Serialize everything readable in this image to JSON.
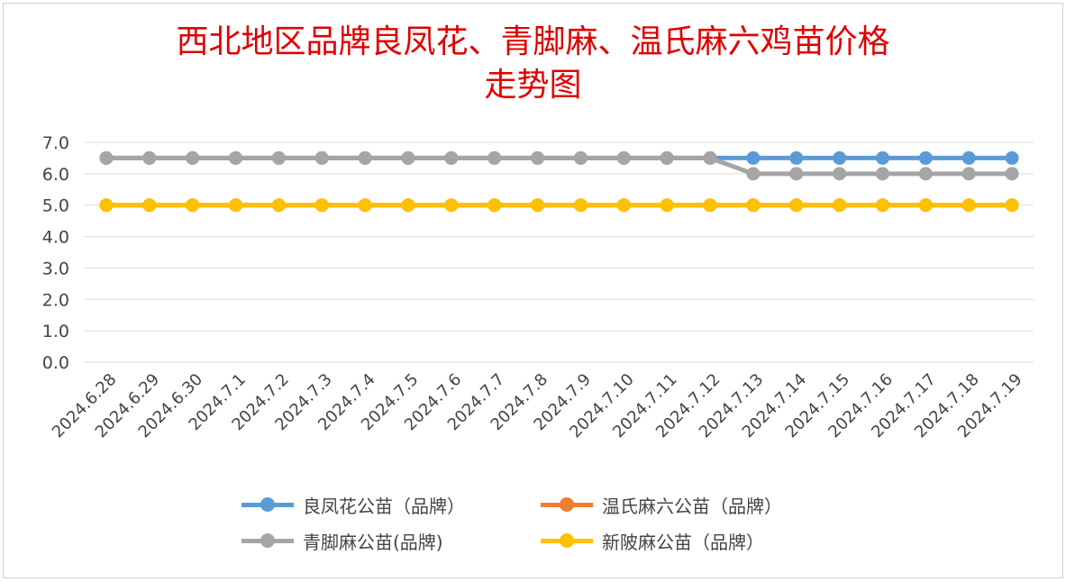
{
  "chart_data": {
    "type": "line",
    "title": "西北地区品牌良凤花、青脚麻、温氏麻六鸡苗价格",
    "title_line2": "走势图",
    "categories": [
      "2024.6.28",
      "2024.6.29",
      "2024.6.30",
      "2024.7.1",
      "2024.7.2",
      "2024.7.3",
      "2024.7.4",
      "2024.7.5",
      "2024.7.6",
      "2024.7.7",
      "2024.7.8",
      "2024.7.9",
      "2024.7.10",
      "2024.7.11",
      "2024.7.12",
      "2024.7.13",
      "2024.7.14",
      "2024.7.15",
      "2024.7.16",
      "2024.7.17",
      "2024.7.18",
      "2024.7.19"
    ],
    "y_ticks": [
      "0.0",
      "1.0",
      "2.0",
      "3.0",
      "4.0",
      "5.0",
      "6.0",
      "7.0"
    ],
    "ylim": [
      0,
      7
    ],
    "grid": true,
    "legend_position": "bottom",
    "series": [
      {
        "name": "良凤花公苗（品牌）",
        "color": "#5b9bd5",
        "values": [
          6.5,
          6.5,
          6.5,
          6.5,
          6.5,
          6.5,
          6.5,
          6.5,
          6.5,
          6.5,
          6.5,
          6.5,
          6.5,
          6.5,
          6.5,
          6.5,
          6.5,
          6.5,
          6.5,
          6.5,
          6.5,
          6.5
        ]
      },
      {
        "name": "温氏麻六公苗（品牌）",
        "color": "#ed7d31",
        "values": [
          5.0,
          5.0,
          5.0,
          5.0,
          5.0,
          5.0,
          5.0,
          5.0,
          5.0,
          5.0,
          5.0,
          5.0,
          5.0,
          5.0,
          5.0,
          5.0,
          5.0,
          5.0,
          5.0,
          5.0,
          5.0,
          5.0
        ]
      },
      {
        "name": "青脚麻公苗(品牌)",
        "color": "#a5a5a5",
        "values": [
          6.5,
          6.5,
          6.5,
          6.5,
          6.5,
          6.5,
          6.5,
          6.5,
          6.5,
          6.5,
          6.5,
          6.5,
          6.5,
          6.5,
          6.5,
          6.0,
          6.0,
          6.0,
          6.0,
          6.0,
          6.0,
          6.0
        ]
      },
      {
        "name": "新陂麻公苗（品牌）",
        "color": "#ffc000",
        "values": [
          5.0,
          5.0,
          5.0,
          5.0,
          5.0,
          5.0,
          5.0,
          5.0,
          5.0,
          5.0,
          5.0,
          5.0,
          5.0,
          5.0,
          5.0,
          5.0,
          5.0,
          5.0,
          5.0,
          5.0,
          5.0,
          5.0
        ]
      }
    ]
  }
}
